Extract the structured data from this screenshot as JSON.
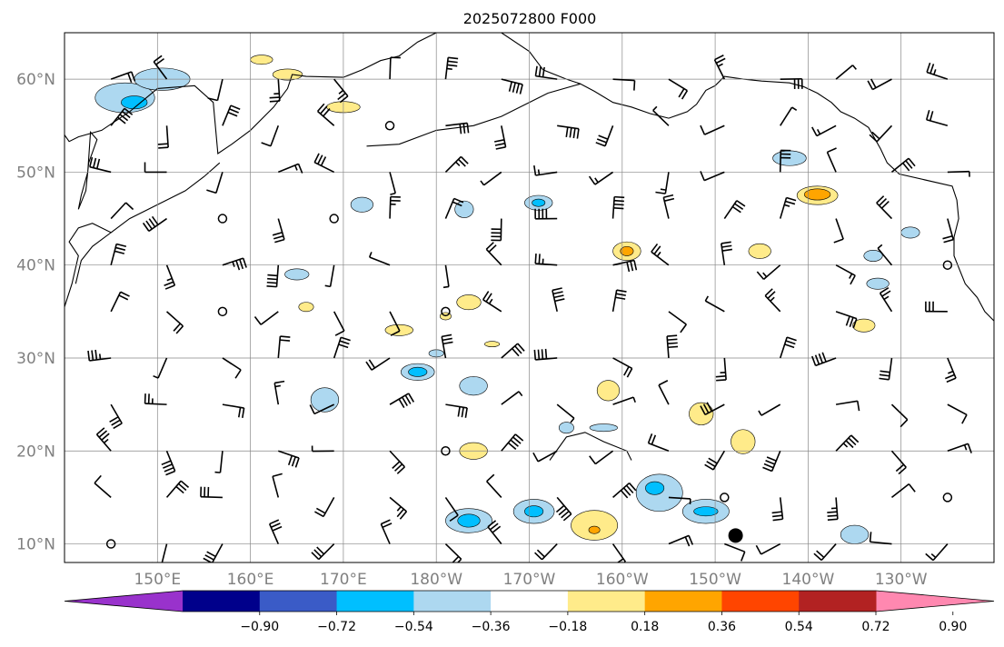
{
  "title": "2025072800 F000",
  "map": {
    "lat_range": [
      8,
      65
    ],
    "lon_range_east": [
      140,
      240
    ],
    "lat_ticks": [
      {
        "value": 10,
        "label": "10°N"
      },
      {
        "value": 20,
        "label": "20°N"
      },
      {
        "value": 30,
        "label": "30°N"
      },
      {
        "value": 40,
        "label": "40°N"
      },
      {
        "value": 50,
        "label": "50°N"
      },
      {
        "value": 60,
        "label": "60°N"
      }
    ],
    "lon_ticks": [
      {
        "value": 150,
        "label": "150°E"
      },
      {
        "value": 160,
        "label": "160°E"
      },
      {
        "value": 170,
        "label": "170°E"
      },
      {
        "value": 180,
        "label": "180°W"
      },
      {
        "value": 190,
        "label": "170°W"
      },
      {
        "value": 200,
        "label": "160°W"
      },
      {
        "value": 210,
        "label": "150°W"
      },
      {
        "value": 220,
        "label": "140°W"
      },
      {
        "value": 230,
        "label": "130°W"
      }
    ],
    "grid": true,
    "tick_label_color": "#808080",
    "storm_marker": {
      "lon": 212.2,
      "lat": 10.9
    }
  },
  "colorbar": {
    "levels": [
      "−0.90",
      "−0.72",
      "−0.54",
      "−0.36",
      "−0.18",
      "0.18",
      "0.36",
      "0.54",
      "0.72",
      "0.90"
    ],
    "colors": [
      "#9932cc",
      "#00008b",
      "#3a5bc7",
      "#00bfff",
      "#add8f0",
      "#ffffff",
      "#ffeb8a",
      "#ffa500",
      "#ff4500",
      "#b22222",
      "#ff88b0"
    ],
    "extend": "both"
  },
  "contour_colors": {
    "neg_light": "#add8f0",
    "neg_mid": "#00bfff",
    "pos_light": "#ffeb8a",
    "pos_mid": "#ffa500"
  }
}
